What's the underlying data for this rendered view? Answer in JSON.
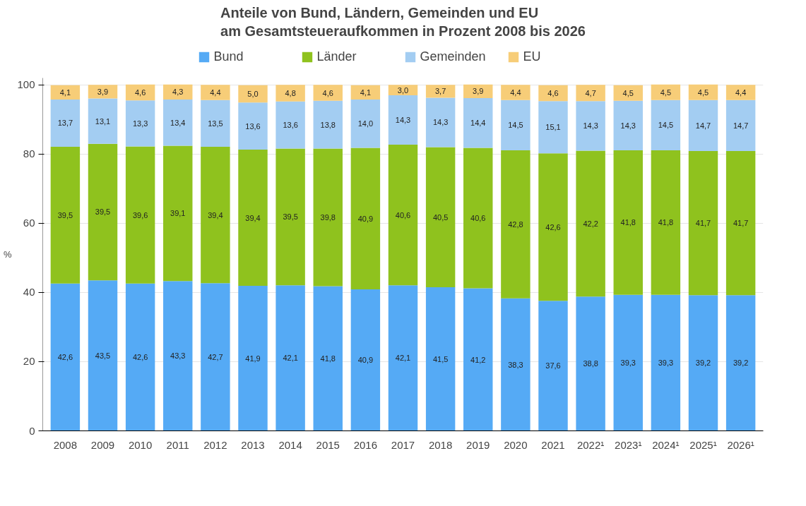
{
  "chart_data": {
    "type": "bar",
    "stacked": true,
    "title": "Anteile von Bund, Ländern, Gemeinden und EU\nam Gesamtsteueraufkommen in Prozent 2008 bis 2026",
    "ylabel": "%",
    "categories": [
      "2008",
      "2009",
      "2010",
      "2011",
      "2012",
      "2013",
      "2014",
      "2015",
      "2016",
      "2017",
      "2018",
      "2019",
      "2020",
      "2021",
      "2022¹",
      "2023¹",
      "2024¹",
      "2025¹",
      "2026¹"
    ],
    "series": [
      {
        "name": "Bund",
        "color": "#55aaf5",
        "values": [
          42.6,
          43.5,
          42.6,
          43.3,
          42.7,
          41.9,
          42.1,
          41.8,
          40.9,
          42.1,
          41.5,
          41.2,
          38.3,
          37.6,
          38.8,
          39.3,
          39.3,
          39.2,
          39.2
        ],
        "value_labels": [
          "42,6",
          "43,5",
          "42,6",
          "43,3",
          "42,7",
          "41,9",
          "42,1",
          "41,8",
          "40,9",
          "42,1",
          "41,5",
          "41,2",
          "38,3",
          "37,6",
          "38,8",
          "39,3",
          "39,3",
          "39,2",
          "39,2"
        ]
      },
      {
        "name": "Länder",
        "color": "#8fc21e",
        "values": [
          39.5,
          39.5,
          39.6,
          39.1,
          39.4,
          39.4,
          39.5,
          39.8,
          40.9,
          40.6,
          40.5,
          40.6,
          42.8,
          42.6,
          42.2,
          41.8,
          41.8,
          41.7,
          41.7
        ],
        "value_labels": [
          "39,5",
          "39,5",
          "39,6",
          "39,1",
          "39,4",
          "39,4",
          "39,5",
          "39,8",
          "40,9",
          "40,6",
          "40,5",
          "40,6",
          "42,8",
          "42,6",
          "42,2",
          "41,8",
          "41,8",
          "41,7",
          "41,7"
        ]
      },
      {
        "name": "Gemeinden",
        "color": "#a3cdf2",
        "values": [
          13.7,
          13.1,
          13.3,
          13.4,
          13.5,
          13.6,
          13.6,
          13.8,
          14.0,
          14.3,
          14.3,
          14.4,
          14.5,
          15.1,
          14.3,
          14.3,
          14.5,
          14.7,
          14.7
        ],
        "value_labels": [
          "13,7",
          "13,1",
          "13,3",
          "13,4",
          "13,5",
          "13,6",
          "13,6",
          "13,8",
          "14,0",
          "14,3",
          "14,3",
          "14,4",
          "14,5",
          "15,1",
          "14,3",
          "14,3",
          "14,5",
          "14,7",
          "14,7"
        ]
      },
      {
        "name": "EU",
        "color": "#f7cd78",
        "values": [
          4.1,
          3.9,
          4.6,
          4.3,
          4.4,
          5.0,
          4.8,
          4.6,
          4.1,
          3.0,
          3.7,
          3.9,
          4.4,
          4.6,
          4.7,
          4.5,
          4.5,
          4.5,
          4.4
        ],
        "value_labels": [
          "4,1",
          "3,9",
          "4,6",
          "4,3",
          "4,4",
          "5,0",
          "4,8",
          "4,6",
          "4,1",
          "3,0",
          "3,7",
          "3,9",
          "4,4",
          "4,6",
          "4,7",
          "4,5",
          "4,5",
          "4,5",
          "4,4"
        ]
      }
    ],
    "ylim": [
      0,
      102
    ],
    "yticks": [
      0,
      20,
      40,
      60,
      80,
      100
    ],
    "grid": "y",
    "legend": "top"
  }
}
